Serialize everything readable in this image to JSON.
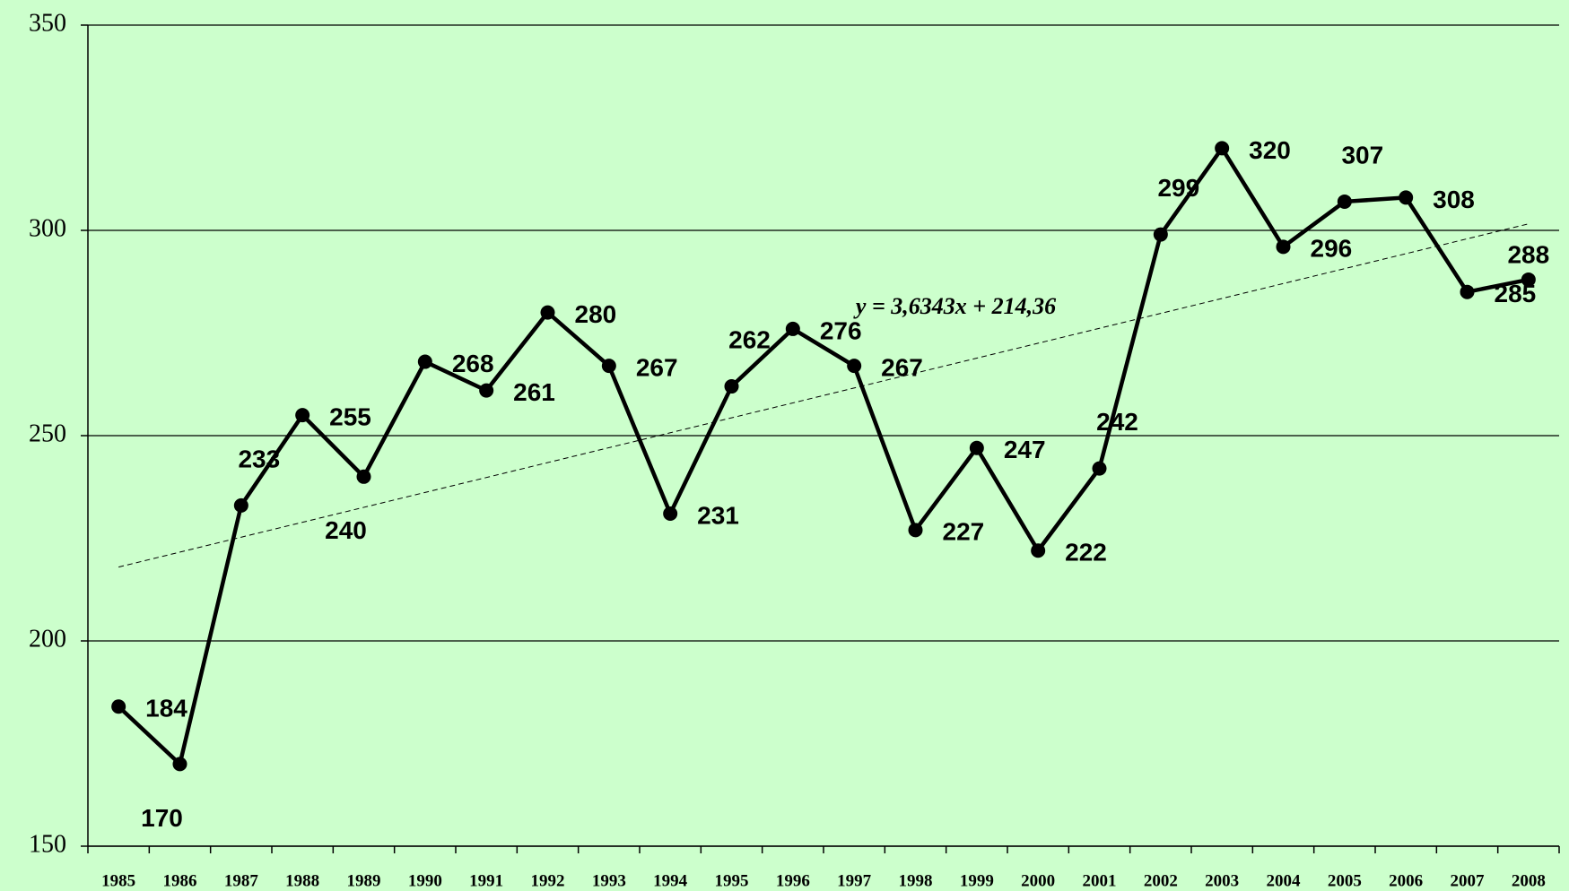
{
  "chart_data": {
    "type": "line",
    "categories": [
      "1985",
      "1986",
      "1987",
      "1988",
      "1989",
      "1990",
      "1991",
      "1992",
      "1993",
      "1994",
      "1995",
      "1996",
      "1997",
      "1998",
      "1999",
      "2000",
      "2001",
      "2002",
      "2003",
      "2004",
      "2005",
      "2006",
      "2007",
      "2008"
    ],
    "series": [
      {
        "color": "#000000",
        "values": [
          184,
          170,
          233,
          255,
          240,
          268,
          261,
          280,
          267,
          231,
          262,
          276,
          267,
          227,
          247,
          222,
          242,
          299,
          320,
          296,
          307,
          308,
          285,
          288
        ]
      }
    ],
    "trendline": {
      "label": "y = 3,6343x + 214,36",
      "slope": 3.6343,
      "intercept": 214.36
    },
    "ylim": [
      150,
      350
    ],
    "yticks": [
      150,
      200,
      250,
      300,
      350
    ],
    "grid": true
  }
}
